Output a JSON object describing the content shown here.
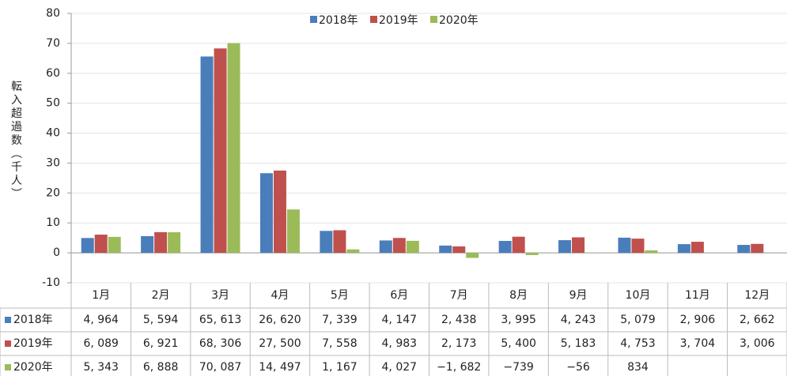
{
  "chart_data": {
    "type": "bar",
    "y_label": "転入超過数（千人）",
    "categories": [
      "1月",
      "2月",
      "3月",
      "4月",
      "5月",
      "6月",
      "7月",
      "8月",
      "9月",
      "10月",
      "11月",
      "12月"
    ],
    "series": [
      {
        "name": "2018年",
        "color": "#4a7ebb",
        "values": [
          4.964,
          5.594,
          65.613,
          26.62,
          7.339,
          4.147,
          2.438,
          3.995,
          4.243,
          5.079,
          2.906,
          2.662
        ],
        "value_labels": [
          "4, 964",
          "5, 594",
          "65, 613",
          "26, 620",
          "7, 339",
          "4, 147",
          "2, 438",
          "3, 995",
          "4, 243",
          "5, 079",
          "2, 906",
          "2, 662"
        ]
      },
      {
        "name": "2019年",
        "color": "#c0504d",
        "values": [
          6.089,
          6.921,
          68.306,
          27.5,
          7.558,
          4.983,
          2.173,
          5.4,
          5.183,
          4.753,
          3.704,
          3.006
        ],
        "value_labels": [
          "6, 089",
          "6, 921",
          "68, 306",
          "27, 500",
          "7, 558",
          "4, 983",
          "2, 173",
          "5, 400",
          "5, 183",
          "4, 753",
          "3, 704",
          "3, 006"
        ]
      },
      {
        "name": "2020年",
        "color": "#9bbb59",
        "values": [
          5.343,
          6.888,
          70.087,
          14.497,
          1.167,
          4.027,
          -1.682,
          -0.739,
          -0.056,
          0.834,
          null,
          null
        ],
        "value_labels": [
          "5, 343",
          "6, 888",
          "70, 087",
          "14, 497",
          "1, 167",
          "4, 027",
          "−1, 682",
          "−739",
          "−56",
          "834",
          null,
          null
        ]
      }
    ],
    "ylim": [
      -10,
      80
    ],
    "yticks": [
      -10,
      0,
      10,
      20,
      30,
      40,
      50,
      60,
      70,
      80
    ],
    "grid": true
  }
}
